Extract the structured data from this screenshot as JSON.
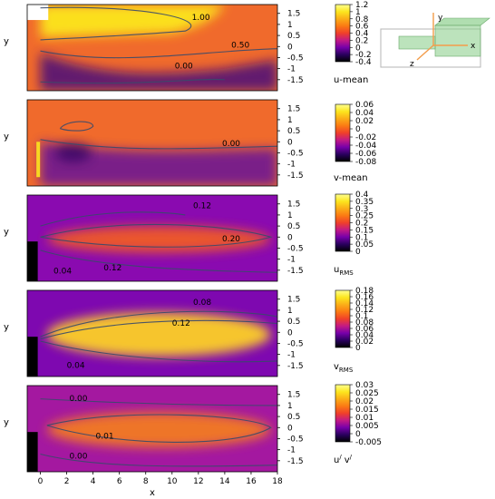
{
  "chart_data": [
    {
      "type": "heatmap",
      "quantity_label": "u-mean",
      "colorbar_ticks": [
        "1.2",
        "1",
        "0.8",
        "0.6",
        "0.4",
        "0.2",
        "0",
        "-0.2",
        "-0.4"
      ],
      "clim": [
        -0.4,
        1.2
      ],
      "ylabel": "y",
      "ylim": [
        -2,
        1.9
      ],
      "y_ticks": [
        "1.5",
        "1",
        "0.5",
        "0",
        "-0.5",
        "-1",
        "-1.5"
      ],
      "contour_labels": [
        "1.00",
        "0.50",
        "0.00"
      ]
    },
    {
      "type": "heatmap",
      "quantity_label": "v-mean",
      "colorbar_ticks": [
        "0.06",
        "0.04",
        "0.02",
        "0",
        "-0.02",
        "-0.04",
        "-0.06",
        "-0.08"
      ],
      "clim": [
        -0.08,
        0.06
      ],
      "ylabel": "y",
      "ylim": [
        -2,
        1.9
      ],
      "y_ticks": [
        "1.5",
        "1",
        "0.5",
        "0",
        "-0.5",
        "-1",
        "-1.5"
      ],
      "contour_labels": [
        "0.00"
      ]
    },
    {
      "type": "heatmap",
      "quantity_label": "u",
      "quantity_sub": "RMS",
      "colorbar_ticks": [
        "0.4",
        "0.35",
        "0.3",
        "0.25",
        "0.2",
        "0.15",
        "0.1",
        "0.05",
        "0"
      ],
      "clim": [
        0,
        0.4
      ],
      "ylabel": "y",
      "ylim": [
        -2,
        1.9
      ],
      "y_ticks": [
        "1.5",
        "1",
        "0.5",
        "0",
        "-0.5",
        "-1",
        "-1.5"
      ],
      "contour_labels": [
        "0.12",
        "0.20",
        "0.04",
        "0.12"
      ]
    },
    {
      "type": "heatmap",
      "quantity_label": "v",
      "quantity_sub": "RMS",
      "colorbar_ticks": [
        "0.18",
        "0.16",
        "0.14",
        "0.12",
        "0.1",
        "0.08",
        "0.06",
        "0.04",
        "0.02",
        "0"
      ],
      "clim": [
        0,
        0.18
      ],
      "ylabel": "y",
      "ylim": [
        -2,
        1.9
      ],
      "y_ticks": [
        "1.5",
        "1",
        "0.5",
        "0",
        "-0.5",
        "-1",
        "-1.5"
      ],
      "contour_labels": [
        "0.08",
        "0.12",
        "0.04"
      ]
    },
    {
      "type": "heatmap",
      "quantity_label": "u",
      "quantity_label2": "v",
      "quantity_sup": "/",
      "colorbar_ticks": [
        "0.03",
        "0.025",
        "0.02",
        "0.015",
        "0.01",
        "0.005",
        "0",
        "-0.005"
      ],
      "clim": [
        -0.005,
        0.03
      ],
      "ylabel": "y",
      "xlabel": "x",
      "ylim": [
        -2,
        1.9
      ],
      "xlim": [
        -1,
        18
      ],
      "y_ticks": [
        "1.5",
        "1",
        "0.5",
        "0",
        "-0.5",
        "-1",
        "-1.5"
      ],
      "x_ticks": [
        "0",
        "2",
        "4",
        "6",
        "8",
        "10",
        "12",
        "14",
        "16",
        "18"
      ],
      "contour_labels": [
        "0.00",
        "0.01",
        "0.00"
      ]
    }
  ],
  "schematic": {
    "axis_labels": [
      "y",
      "x",
      "z"
    ],
    "colors": {
      "box": "#888888",
      "duct": "#8fd08f",
      "axis": "#f39c4a"
    }
  },
  "colormap": [
    "#000000",
    "#2a005e",
    "#7700aa",
    "#c41a84",
    "#f0402a",
    "#fb7a14",
    "#fbae18",
    "#fce61e",
    "#ffff90"
  ]
}
